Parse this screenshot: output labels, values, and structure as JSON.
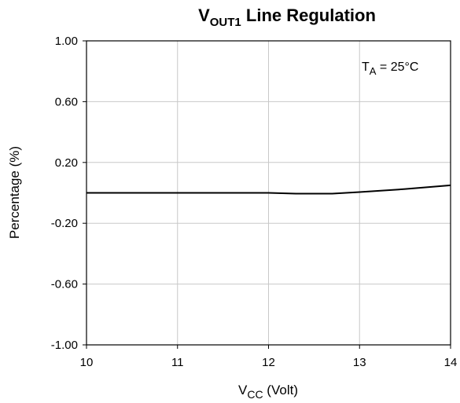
{
  "chart_data": {
    "type": "line",
    "title": {
      "main": "V",
      "sub": "OUT1",
      "rest": " Line Regulation"
    },
    "xlabel": {
      "main": "V",
      "sub": "CC",
      "rest": " (Volt)"
    },
    "ylabel": "Percentage (%)",
    "annotation": {
      "main": "T",
      "sub": "A",
      "rest": " = 25°C"
    },
    "xlim": [
      10,
      14
    ],
    "ylim": [
      -1.0,
      1.0
    ],
    "x_ticks": [
      "10",
      "11",
      "12",
      "13",
      "14"
    ],
    "x_tick_values": [
      10,
      11,
      12,
      13,
      14
    ],
    "y_ticks": [
      "1.00",
      "0.60",
      "0.20",
      "-0.20",
      "-0.60",
      "-1.00"
    ],
    "y_tick_values": [
      1.0,
      0.6,
      0.2,
      -0.2,
      -0.6,
      -1.0
    ],
    "grid": true,
    "series": [
      {
        "color": "#000000",
        "x": [
          10.0,
          11.0,
          12.0,
          12.3,
          12.7,
          13.0,
          13.5,
          14.0
        ],
        "y": [
          0.0,
          0.0,
          0.0,
          -0.005,
          -0.005,
          0.005,
          0.025,
          0.05
        ]
      }
    ]
  }
}
